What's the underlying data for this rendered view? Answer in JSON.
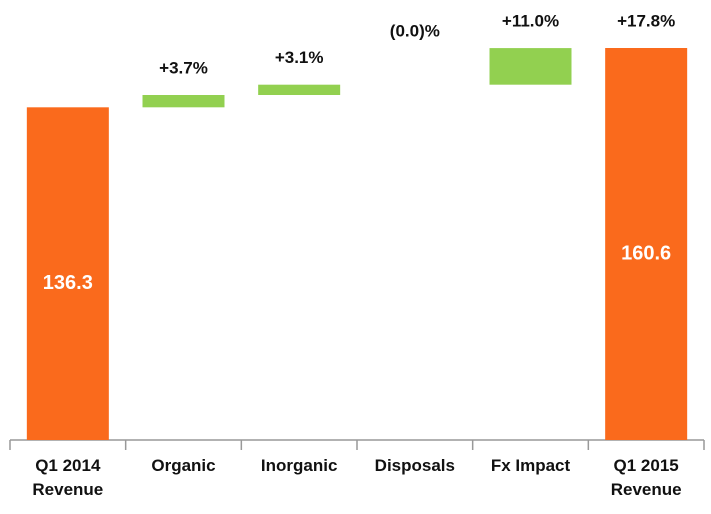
{
  "chart_data": {
    "type": "waterfall",
    "categories": [
      "Q1 2014 Revenue",
      "Organic",
      "Inorganic",
      "Disposals",
      "Fx Impact",
      "Q1 2015 Revenue"
    ],
    "values": [
      136.3,
      null,
      null,
      null,
      null,
      160.6
    ],
    "changes": [
      null,
      3.7,
      3.1,
      0.0,
      11.0,
      17.8
    ],
    "change_labels": [
      null,
      "+3.7%",
      "+3.1%",
      "(0.0)%",
      "+11.0%",
      "+17.8%"
    ],
    "total_color": "#fa6a1c",
    "change_color": "#92d050"
  }
}
